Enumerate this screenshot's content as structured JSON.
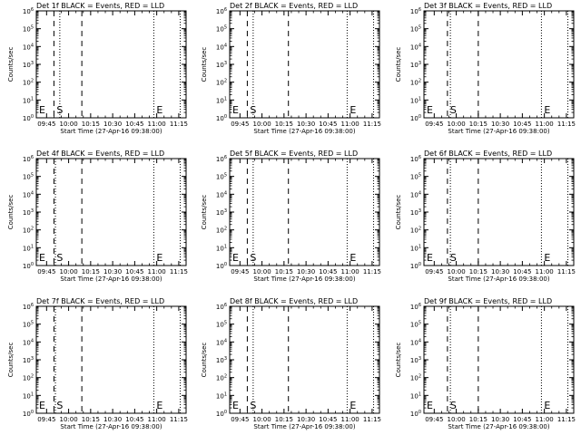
{
  "window_title": "",
  "chart_data": [
    {
      "type": "line",
      "title": "Det 1f BLACK = Events, RED = LLD",
      "xlabel": "Start Time (27-Apr-16 09:38:00)",
      "ylabel": "Counts/sec",
      "x_tick_labels": [
        "09:45",
        "10:00",
        "10:15",
        "10:30",
        "10:45",
        "11:00",
        "11:15"
      ],
      "y_tick_labels": [
        "10^0",
        "10^1",
        "10^2",
        "10^3",
        "10^4",
        "10^5",
        "10^6"
      ],
      "xlim": [
        "09:38",
        "11:20"
      ],
      "ylim": [
        1,
        1000000
      ],
      "y_scale": "log",
      "series": [],
      "dashed_lines": [
        "09:50",
        "10:09"
      ],
      "dotted_lines": [
        "09:38",
        "09:54",
        "10:58",
        "11:16"
      ],
      "markers": [
        {
          "label": "E",
          "x": "09:38"
        },
        {
          "label": "S",
          "x": "09:50"
        },
        {
          "label": "E",
          "x": "10:58"
        }
      ]
    },
    {
      "type": "line",
      "title": "Det 2f BLACK = Events, RED = LLD",
      "xlabel": "Start Time (27-Apr-16 09:38:00)",
      "ylabel": "Counts/sec",
      "x_tick_labels": [
        "09:45",
        "10:00",
        "10:15",
        "10:30",
        "10:45",
        "11:00",
        "11:15"
      ],
      "y_tick_labels": [
        "10^0",
        "10^1",
        "10^2",
        "10^3",
        "10^4",
        "10^5",
        "10^6"
      ],
      "xlim": [
        "09:38",
        "11:20"
      ],
      "ylim": [
        1,
        1000000
      ],
      "y_scale": "log",
      "series": [],
      "dashed_lines": [
        "09:50",
        "10:18"
      ],
      "dotted_lines": [
        "09:38",
        "09:54",
        "10:58",
        "11:16"
      ],
      "markers": [
        {
          "label": "E",
          "x": "09:38"
        },
        {
          "label": "S",
          "x": "09:50"
        },
        {
          "label": "E",
          "x": "10:58"
        }
      ]
    },
    {
      "type": "line",
      "title": "Det 3f BLACK = Events, RED = LLD",
      "xlabel": "Start Time (27-Apr-16 09:38:00)",
      "ylabel": "Counts/sec",
      "x_tick_labels": [
        "09:45",
        "10:00",
        "10:15",
        "10:30",
        "10:45",
        "11:00",
        "11:15"
      ],
      "y_tick_labels": [
        "10^0",
        "10^1",
        "10^2",
        "10^3",
        "10^4",
        "10^5",
        "10^6"
      ],
      "xlim": [
        "09:38",
        "11:20"
      ],
      "ylim": [
        1,
        1000000
      ],
      "y_scale": "log",
      "series": [],
      "dashed_lines": [
        "09:54",
        "10:15"
      ],
      "dotted_lines": [
        "09:38",
        "09:56",
        "10:58",
        "11:16"
      ],
      "markers": [
        {
          "label": "E",
          "x": "09:38"
        },
        {
          "label": "S",
          "x": "09:54"
        },
        {
          "label": "E",
          "x": "10:58"
        }
      ]
    },
    {
      "type": "line",
      "title": "Det 4f BLACK = Events, RED = LLD",
      "xlabel": "Start Time (27-Apr-16 09:38:00)",
      "ylabel": "Counts/sec",
      "x_tick_labels": [
        "09:45",
        "10:00",
        "10:15",
        "10:30",
        "10:45",
        "11:00",
        "11:15"
      ],
      "y_tick_labels": [
        "10^0",
        "10^1",
        "10^2",
        "10^3",
        "10^4",
        "10^5",
        "10^6"
      ],
      "xlim": [
        "09:38",
        "11:20"
      ],
      "ylim": [
        1,
        1000000
      ],
      "y_scale": "log",
      "series": [],
      "dashed_lines": [
        "09:50",
        "10:09"
      ],
      "dotted_lines": [
        "09:38",
        "09:51",
        "10:58",
        "11:16"
      ],
      "markers": [
        {
          "label": "E",
          "x": "09:38"
        },
        {
          "label": "S",
          "x": "09:50"
        },
        {
          "label": "E",
          "x": "10:58"
        }
      ]
    },
    {
      "type": "line",
      "title": "Det 5f BLACK = Events, RED = LLD",
      "xlabel": "Start Time (27-Apr-16 09:38:00)",
      "ylabel": "Counts/sec",
      "x_tick_labels": [
        "09:45",
        "10:00",
        "10:15",
        "10:30",
        "10:45",
        "11:00",
        "11:15"
      ],
      "y_tick_labels": [
        "10^0",
        "10^1",
        "10^2",
        "10^3",
        "10^4",
        "10^5",
        "10^6"
      ],
      "xlim": [
        "09:38",
        "11:20"
      ],
      "ylim": [
        1,
        1000000
      ],
      "y_scale": "log",
      "series": [],
      "dashed_lines": [
        "09:50",
        "10:18"
      ],
      "dotted_lines": [
        "09:38",
        "09:54",
        "10:58",
        "11:16"
      ],
      "markers": [
        {
          "label": "E",
          "x": "09:38"
        },
        {
          "label": "S",
          "x": "09:50"
        },
        {
          "label": "E",
          "x": "10:58"
        }
      ]
    },
    {
      "type": "line",
      "title": "Det 6f BLACK = Events, RED = LLD",
      "xlabel": "Start Time (27-Apr-16 09:38:00)",
      "ylabel": "Counts/sec",
      "x_tick_labels": [
        "09:45",
        "10:00",
        "10:15",
        "10:30",
        "10:45",
        "11:00",
        "11:15"
      ],
      "y_tick_labels": [
        "10^0",
        "10^1",
        "10^2",
        "10^3",
        "10^4",
        "10^5",
        "10^6"
      ],
      "xlim": [
        "09:38",
        "11:20"
      ],
      "ylim": [
        1,
        1000000
      ],
      "y_scale": "log",
      "series": [],
      "dashed_lines": [
        "09:54",
        "10:15"
      ],
      "dotted_lines": [
        "09:38",
        "09:56",
        "10:58",
        "11:16"
      ],
      "markers": [
        {
          "label": "E",
          "x": "09:38"
        },
        {
          "label": "S",
          "x": "09:54"
        },
        {
          "label": "E",
          "x": "10:58"
        }
      ]
    },
    {
      "type": "line",
      "title": "Det 7f BLACK = Events, RED = LLD",
      "xlabel": "Start Time (27-Apr-16 09:38:00)",
      "ylabel": "Counts/sec",
      "x_tick_labels": [
        "09:45",
        "10:00",
        "10:15",
        "10:30",
        "10:45",
        "11:00",
        "11:15"
      ],
      "y_tick_labels": [
        "10^0",
        "10^1",
        "10^2",
        "10^3",
        "10^4",
        "10^5",
        "10^6"
      ],
      "xlim": [
        "09:38",
        "11:20"
      ],
      "ylim": [
        1,
        1000000
      ],
      "y_scale": "log",
      "series": [],
      "dashed_lines": [
        "09:50",
        "10:09"
      ],
      "dotted_lines": [
        "09:38",
        "09:51",
        "10:58",
        "11:16"
      ],
      "markers": [
        {
          "label": "E",
          "x": "09:38"
        },
        {
          "label": "S",
          "x": "09:50"
        },
        {
          "label": "E",
          "x": "10:58"
        }
      ]
    },
    {
      "type": "line",
      "title": "Det 8f BLACK = Events, RED = LLD",
      "xlabel": "Start Time (27-Apr-16 09:38:00)",
      "ylabel": "Counts/sec",
      "x_tick_labels": [
        "09:45",
        "10:00",
        "10:15",
        "10:30",
        "10:45",
        "11:00",
        "11:15"
      ],
      "y_tick_labels": [
        "10^0",
        "10^1",
        "10^2",
        "10^3",
        "10^4",
        "10^5",
        "10^6"
      ],
      "xlim": [
        "09:38",
        "11:20"
      ],
      "ylim": [
        1,
        1000000
      ],
      "y_scale": "log",
      "series": [],
      "dashed_lines": [
        "09:50",
        "10:18"
      ],
      "dotted_lines": [
        "09:38",
        "09:54",
        "10:58",
        "11:16"
      ],
      "markers": [
        {
          "label": "E",
          "x": "09:38"
        },
        {
          "label": "S",
          "x": "09:50"
        },
        {
          "label": "E",
          "x": "10:58"
        }
      ]
    },
    {
      "type": "line",
      "title": "Det 9f BLACK = Events, RED = LLD",
      "xlabel": "Start Time (27-Apr-16 09:38:00)",
      "ylabel": "Counts/sec",
      "x_tick_labels": [
        "09:45",
        "10:00",
        "10:15",
        "10:30",
        "10:45",
        "11:00",
        "11:15"
      ],
      "y_tick_labels": [
        "10^0",
        "10^1",
        "10^2",
        "10^3",
        "10^4",
        "10^5",
        "10^6"
      ],
      "xlim": [
        "09:38",
        "11:20"
      ],
      "ylim": [
        1,
        1000000
      ],
      "y_scale": "log",
      "series": [],
      "dashed_lines": [
        "09:54",
        "10:15"
      ],
      "dotted_lines": [
        "09:38",
        "09:56",
        "10:58",
        "11:16"
      ],
      "markers": [
        {
          "label": "E",
          "x": "09:38"
        },
        {
          "label": "S",
          "x": "09:54"
        },
        {
          "label": "E",
          "x": "10:58"
        }
      ]
    }
  ]
}
